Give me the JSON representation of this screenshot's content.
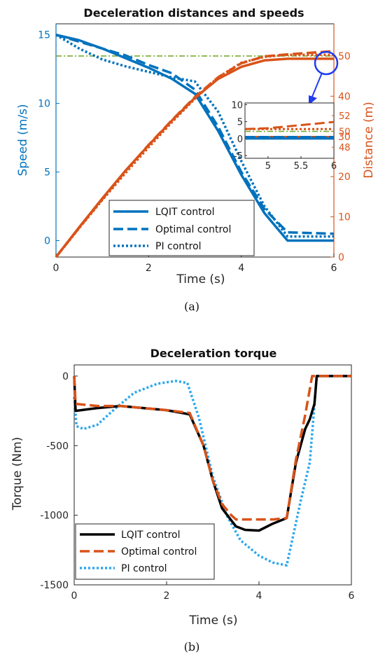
{
  "chart_data": [
    {
      "type": "line",
      "title": "Deceleration distances and speeds",
      "xlabel": "Time (s)",
      "ylabel": "Speed (m/s)",
      "y2label": "Distance (m)",
      "caption": "(a)",
      "xlim": [
        0,
        6
      ],
      "ylim": [
        -1.2,
        15.8
      ],
      "y2lim": [
        0,
        58
      ],
      "xticks": [
        "0",
        "2",
        "4",
        "6"
      ],
      "yticks": [
        "0",
        "5",
        "10",
        "15"
      ],
      "y2ticks": [
        "0",
        "10",
        "20",
        "30",
        "40",
        "50"
      ],
      "grid": false,
      "legend_position": "bottom-left",
      "reference_line": {
        "axis": "right",
        "y": 50,
        "color": "#77ac30"
      },
      "series": [
        {
          "name": "LQIT control",
          "axis": "left",
          "color": "#0072bd",
          "style": "solid",
          "x": [
            0,
            0.5,
            1,
            1.5,
            2,
            2.5,
            3,
            3.5,
            4,
            4.5,
            5,
            6
          ],
          "y": [
            15,
            14.6,
            14.0,
            13.3,
            12.6,
            11.8,
            10.7,
            8.0,
            4.8,
            2.0,
            0,
            0
          ]
        },
        {
          "name": "Optimal control",
          "axis": "left",
          "color": "#0072bd",
          "style": "dashed",
          "x": [
            0,
            0.5,
            1,
            1.5,
            2,
            2.5,
            3,
            3.5,
            4,
            4.5,
            5,
            6
          ],
          "y": [
            15,
            14.5,
            14.0,
            13.5,
            12.8,
            12.2,
            11.0,
            8.3,
            5.0,
            2.3,
            0.6,
            0.5
          ]
        },
        {
          "name": "PI control",
          "axis": "left",
          "color": "#0072bd",
          "style": "dotted",
          "x": [
            0,
            0.5,
            1,
            1.5,
            2,
            2.5,
            3,
            3.5,
            4,
            4.5,
            5,
            6
          ],
          "y": [
            15,
            14.0,
            13.2,
            12.7,
            12.3,
            11.9,
            11.6,
            9.4,
            5.8,
            2.5,
            0.3,
            0.3
          ]
        },
        {
          "name": "",
          "axis": "right",
          "color": "#d95319",
          "style": "solid",
          "x": [
            0,
            0.5,
            1,
            1.5,
            2,
            2.5,
            3,
            3.5,
            4,
            4.5,
            5,
            6
          ],
          "y": [
            0,
            7.4,
            14.6,
            21.5,
            27.8,
            33.9,
            39.6,
            44.3,
            47.3,
            48.9,
            49.3,
            49.3
          ]
        },
        {
          "name": "",
          "axis": "right",
          "color": "#d95319",
          "style": "dashed",
          "x": [
            0,
            0.5,
            1,
            1.5,
            2,
            2.5,
            3,
            3.5,
            4,
            4.5,
            5,
            6
          ],
          "y": [
            0,
            7.3,
            14.4,
            21.4,
            27.9,
            34.0,
            39.8,
            44.7,
            48.2,
            49.9,
            50.4,
            51.2
          ]
        },
        {
          "name": "",
          "axis": "right",
          "color": "#d95319",
          "style": "dotted",
          "x": [
            0,
            0.5,
            1,
            1.5,
            2,
            2.5,
            3,
            3.5,
            4,
            4.5,
            5,
            6
          ],
          "y": [
            0,
            7.2,
            14.2,
            20.9,
            27.3,
            33.5,
            39.4,
            44.7,
            48.3,
            49.8,
            50.3,
            50.3
          ]
        }
      ],
      "inset": {
        "xticks": [
          "5",
          "5.5",
          "6"
        ],
        "yticks": [
          "-5",
          "0",
          "5",
          "10"
        ],
        "y2ticks": [
          "48",
          "50",
          "52"
        ],
        "xlim": [
          4.65,
          6
        ],
        "ylim": [
          -5.8,
          10.5
        ],
        "y2lim": [
          46.6,
          53.6
        ],
        "series": [
          {
            "axis": "right",
            "style": "solid",
            "x": [
              4.65,
              6
            ],
            "y": [
              49.3,
              49.3
            ]
          },
          {
            "axis": "right",
            "style": "dashed",
            "x": [
              4.65,
              5,
              6
            ],
            "y": [
              50.3,
              50.4,
              51.2
            ]
          },
          {
            "axis": "right",
            "style": "dotted",
            "x": [
              4.65,
              6
            ],
            "y": [
              50.3,
              50.3
            ]
          },
          {
            "axis": "right",
            "style": "dashdot-green",
            "x": [
              4.65,
              6
            ],
            "y": [
              50,
              50
            ]
          },
          {
            "axis": "left",
            "style": "solid",
            "x": [
              4.65,
              6
            ],
            "y": [
              0,
              0
            ]
          },
          {
            "axis": "left",
            "style": "dashed",
            "x": [
              4.65,
              6
            ],
            "y": [
              0.5,
              0.5
            ]
          },
          {
            "axis": "left",
            "style": "dotted",
            "x": [
              4.65,
              6
            ],
            "y": [
              0.3,
              0.3
            ]
          }
        ]
      }
    },
    {
      "type": "line",
      "title": "Deceleration torque",
      "xlabel": "Time (s)",
      "ylabel": "Torque (Nm)",
      "caption": "(b)",
      "xlim": [
        0,
        6
      ],
      "ylim": [
        -1500,
        80
      ],
      "xticks": [
        "0",
        "2",
        "4",
        "6"
      ],
      "yticks": [
        "0",
        "-500",
        "-1000",
        "-1500"
      ],
      "grid": false,
      "legend_position": "bottom-left",
      "series": [
        {
          "name": "LQIT control",
          "color": "#000000",
          "style": "solid",
          "x": [
            0,
            0.03,
            0.5,
            1,
            1.5,
            2,
            2.5,
            2.8,
            3,
            3.2,
            3.5,
            3.7,
            4,
            4.3,
            4.6,
            4.8,
            5,
            5.1,
            5.2,
            5.25,
            6
          ],
          "y": [
            0,
            -250,
            -230,
            -215,
            -230,
            -245,
            -275,
            -500,
            -750,
            -950,
            -1080,
            -1105,
            -1110,
            -1060,
            -1020,
            -620,
            -380,
            -310,
            -200,
            0,
            0
          ]
        },
        {
          "name": "Optimal control",
          "color": "#d95319",
          "style": "dashed",
          "x": [
            0,
            0.03,
            0.5,
            1,
            1.5,
            2,
            2.5,
            2.8,
            3,
            3.2,
            3.4,
            3.5,
            4,
            4.3,
            4.6,
            4.8,
            5,
            5.15,
            6
          ],
          "y": [
            0,
            -200,
            -215,
            -215,
            -230,
            -245,
            -265,
            -500,
            -750,
            -920,
            -1000,
            -1030,
            -1030,
            -1030,
            -1020,
            -600,
            -280,
            0,
            0
          ]
        },
        {
          "name": "PI control",
          "color": "#2aa7ee",
          "style": "dotted",
          "x": [
            0,
            0.05,
            0.2,
            0.5,
            0.9,
            1.3,
            1.8,
            2.2,
            2.45,
            2.7,
            3,
            3.3,
            3.6,
            4,
            4.3,
            4.6,
            4.9,
            5.1,
            5.25,
            6
          ],
          "y": [
            -150,
            -360,
            -380,
            -350,
            -230,
            -120,
            -55,
            -35,
            -50,
            -300,
            -720,
            -1000,
            -1180,
            -1290,
            -1340,
            -1360,
            -900,
            -620,
            0,
            0
          ]
        }
      ]
    }
  ]
}
